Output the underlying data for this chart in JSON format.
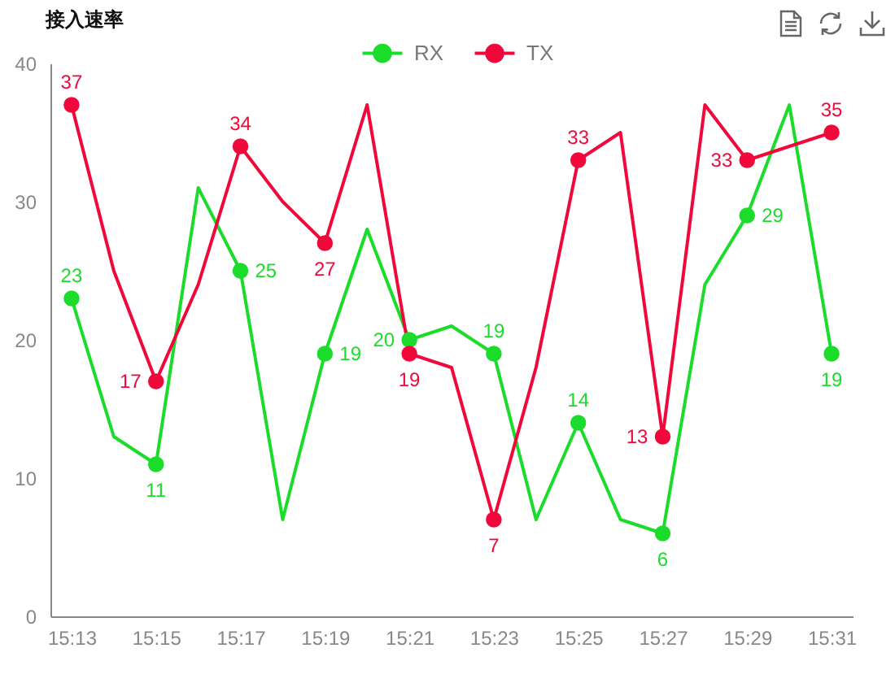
{
  "chart_data": {
    "type": "line",
    "title": "接入速率",
    "categories": [
      "15:13",
      null,
      "15:15",
      null,
      "15:17",
      null,
      "15:19",
      null,
      "15:21",
      null,
      "15:23",
      null,
      "15:25",
      null,
      "15:27",
      null,
      "15:29",
      null,
      "15:31"
    ],
    "series": [
      {
        "name": "RX",
        "color": "#1bdc2b",
        "values": [
          23,
          13,
          11,
          31,
          25,
          7,
          19,
          28,
          20,
          21,
          19,
          7,
          14,
          7,
          6,
          24,
          29,
          37,
          19
        ],
        "value_labels": [
          "23",
          null,
          "11",
          null,
          "25",
          null,
          "19",
          null,
          "20",
          null,
          "19",
          null,
          "14",
          null,
          "6",
          null,
          "29",
          null,
          "19"
        ]
      },
      {
        "name": "TX",
        "color": "#f0083a",
        "values": [
          37,
          25,
          17,
          24,
          34,
          30,
          27,
          37,
          19,
          18,
          7,
          18,
          33,
          35,
          13,
          37,
          33,
          34,
          35
        ],
        "value_labels": [
          "37",
          null,
          "17",
          null,
          "34",
          null,
          "27",
          null,
          "19",
          null,
          "7",
          null,
          "33",
          null,
          "13",
          null,
          "33",
          null,
          "35"
        ]
      }
    ],
    "ylim": [
      0,
      40
    ],
    "yticks": [
      0,
      10,
      20,
      30,
      40
    ],
    "grid": false,
    "legend": "top",
    "marker": "circle",
    "line_style": "solid"
  }
}
